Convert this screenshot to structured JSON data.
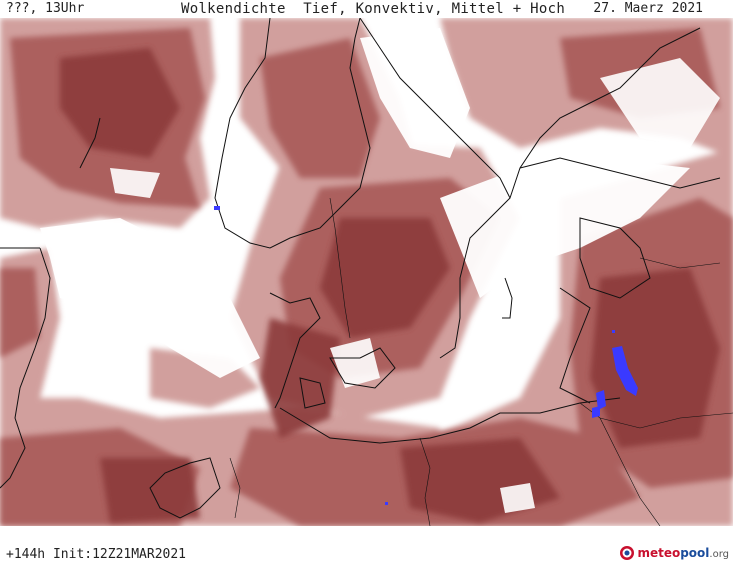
{
  "header": {
    "left": "???, 13Uhr",
    "title": "Wolkendichte  Tief, Konvektiv, Mittel + Hoch",
    "date": "27. Maerz 2021"
  },
  "footer": {
    "run_info": "+144h  Init:12Z21MAR2021",
    "logo": {
      "part1": "meteo",
      "part2": "pool",
      "part3": ".org"
    }
  },
  "colors": {
    "cloud_dense": "#8c3a3a",
    "cloud_medium": "#a85a58",
    "cloud_light": "#c98f8c",
    "precip": "#3a3aff",
    "coast": "#111111",
    "background": "#ffffff"
  },
  "icons": {
    "logo": "meteopool-logo-icon"
  }
}
